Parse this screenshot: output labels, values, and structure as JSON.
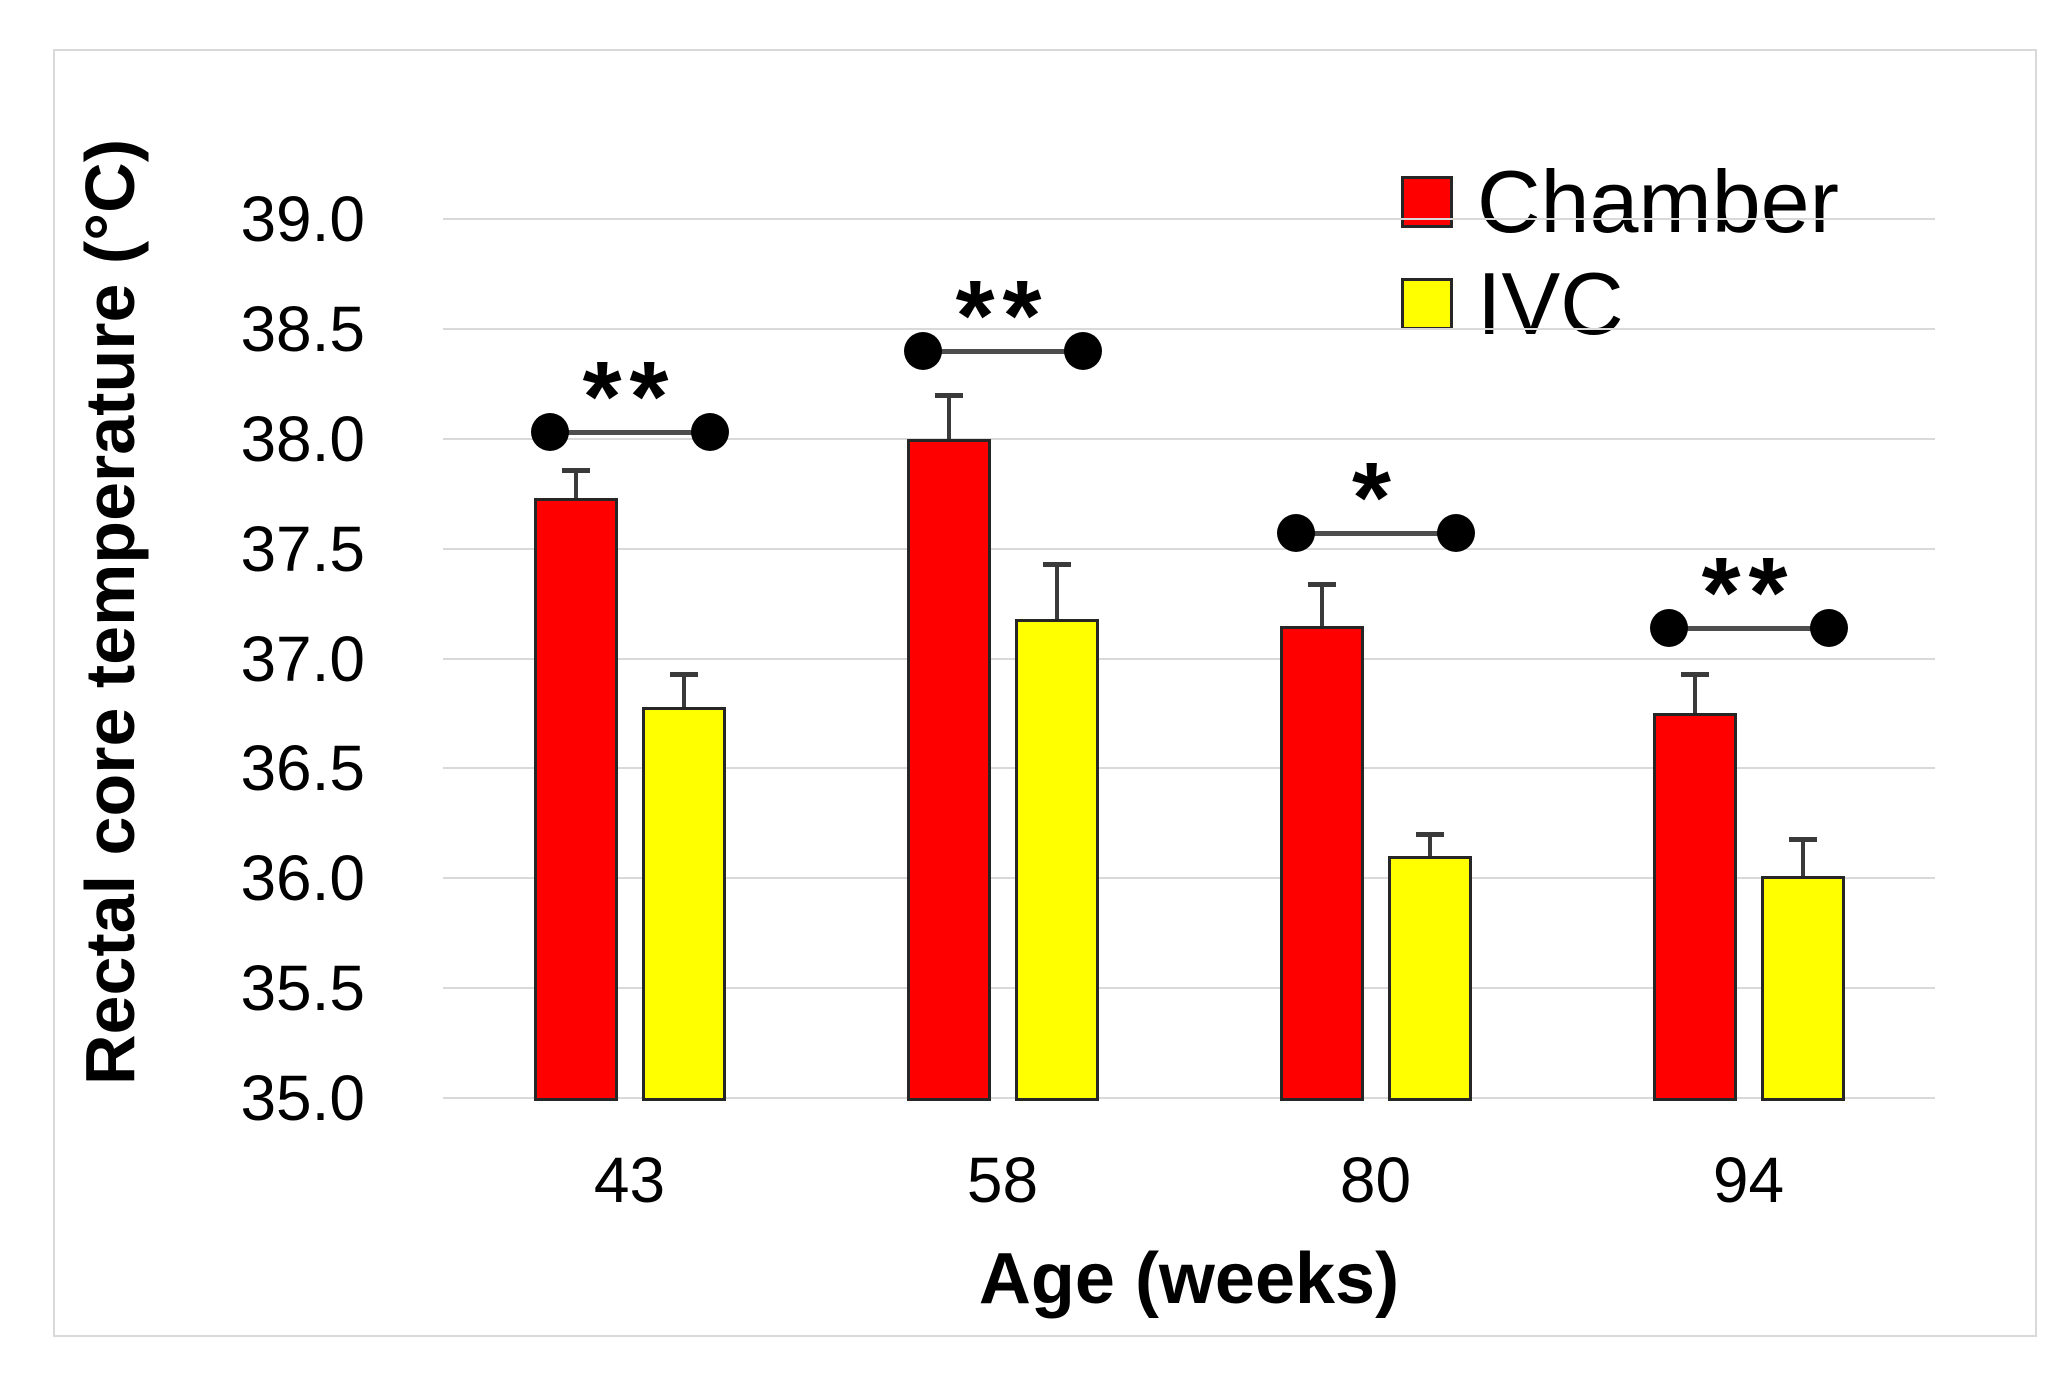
{
  "chart_data": {
    "type": "bar",
    "title": "",
    "xlabel": "Age (weeks)",
    "ylabel": "Rectal core temperature (°C)",
    "ylim": [
      35.0,
      39.0
    ],
    "ytick_step": 0.5,
    "yticks": [
      "35.0",
      "35.5",
      "36.0",
      "36.5",
      "37.0",
      "37.5",
      "38.0",
      "38.5",
      "39.0"
    ],
    "categories": [
      "43",
      "58",
      "80",
      "94"
    ],
    "series": [
      {
        "name": "Chamber",
        "color": "#ff0000",
        "values": [
          37.73,
          38.0,
          37.15,
          36.75
        ],
        "errors": [
          0.13,
          0.2,
          0.19,
          0.18
        ]
      },
      {
        "name": "IVC",
        "color": "#ffff00",
        "values": [
          36.78,
          37.18,
          36.1,
          36.01
        ],
        "errors": [
          0.15,
          0.25,
          0.1,
          0.17
        ]
      }
    ],
    "error_bars": "upper only",
    "significance": [
      {
        "group": "43",
        "label": "**",
        "line_y": 38.03
      },
      {
        "group": "58",
        "label": "**",
        "line_y": 38.4
      },
      {
        "group": "80",
        "label": "*",
        "line_y": 37.57
      },
      {
        "group": "94",
        "label": "**",
        "line_y": 37.14
      }
    ],
    "legend": {
      "position": "top-right",
      "entries": [
        "Chamber",
        "IVC"
      ]
    },
    "grid": "horizontal",
    "grid_color": "#d9d9d9",
    "background": "#ffffff",
    "frame_color": "#d9d9d9"
  }
}
